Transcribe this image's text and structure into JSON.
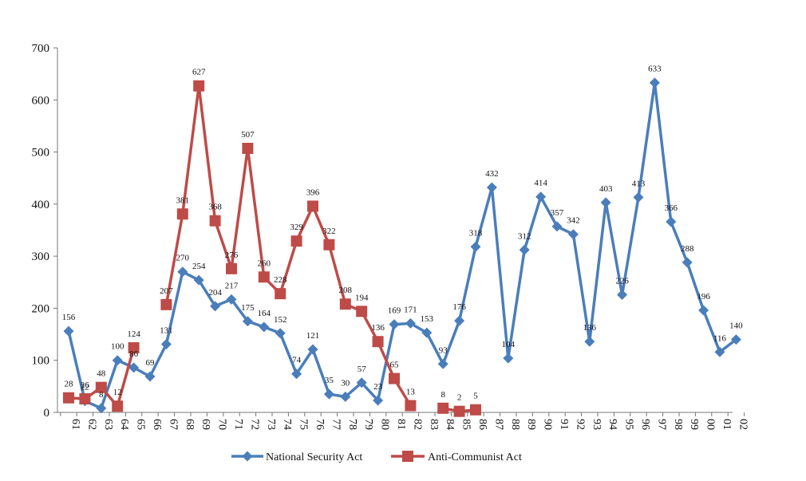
{
  "chart_data": {
    "type": "line",
    "title": "",
    "xlabel": "",
    "ylabel": "",
    "ylim": [
      0,
      700
    ],
    "yticks": [
      0,
      100,
      200,
      300,
      400,
      500,
      600,
      700
    ],
    "grid": false,
    "legend_position": "bottom",
    "categories": [
      "61",
      "62",
      "63",
      "64",
      "65",
      "66",
      "67",
      "68",
      "69",
      "70",
      "71",
      "72",
      "73",
      "74",
      "75",
      "76",
      "77",
      "78",
      "79",
      "80",
      "81",
      "82",
      "83",
      "84",
      "85",
      "86",
      "87",
      "88",
      "89",
      "90",
      "91",
      "92",
      "93",
      "94",
      "95",
      "96",
      "97",
      "98",
      "99",
      "00",
      "01",
      "02"
    ],
    "series": [
      {
        "name": "National Security Act",
        "color": "#4a7ebb",
        "marker": "diamond",
        "values": [
          156,
          22,
          8,
          100,
          86,
          69,
          131,
          270,
          254,
          204,
          217,
          175,
          164,
          152,
          74,
          121,
          35,
          30,
          57,
          23,
          169,
          171,
          153,
          93,
          176,
          318,
          432,
          104,
          312,
          414,
          357,
          342,
          136,
          403,
          226,
          413,
          633,
          366,
          288,
          196,
          116,
          140
        ]
      },
      {
        "name": "Anti-Communist Act",
        "color": "#be4b48",
        "marker": "square",
        "values": [
          28,
          26,
          48,
          12,
          124,
          null,
          207,
          381,
          627,
          368,
          276,
          507,
          260,
          228,
          329,
          396,
          322,
          208,
          194,
          136,
          65,
          13,
          null,
          8,
          2,
          5,
          null,
          null,
          null,
          null,
          null,
          null,
          null,
          null,
          null,
          null,
          null,
          null,
          null,
          null,
          null,
          null
        ]
      }
    ]
  }
}
